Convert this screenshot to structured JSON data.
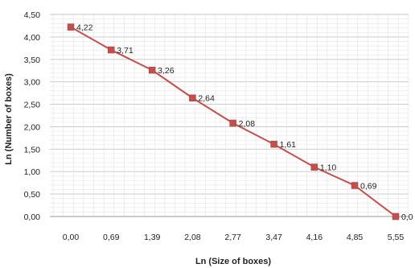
{
  "chart_data": {
    "type": "line",
    "x_tick_labels": [
      "0,00",
      "0,69",
      "1,39",
      "2,08",
      "2,77",
      "3,47",
      "4,16",
      "4,85",
      "5,55"
    ],
    "y_tick_labels": [
      "0,00",
      "0,50",
      "1,00",
      "1,50",
      "2,00",
      "2,50",
      "3,00",
      "3,50",
      "4,00",
      "4,50"
    ],
    "x": [
      0.0,
      0.69,
      1.39,
      2.08,
      2.77,
      3.47,
      4.16,
      4.85,
      5.55
    ],
    "series": [
      {
        "values": [
          4.22,
          3.71,
          3.26,
          2.64,
          2.08,
          1.61,
          1.1,
          0.69,
          0.0
        ],
        "labels": [
          "4,22",
          "3,71",
          "3,26",
          "2,64",
          "2,08",
          "1,61",
          "1,10",
          "0,69",
          "0,0"
        ]
      }
    ],
    "xlabel": "Ln (Size of boxes)",
    "ylabel": "Ln (Number of boxes)",
    "ylim": [
      0,
      4.5
    ],
    "grid": true,
    "colors": {
      "line": "#c0504d",
      "marker": "#c0504d",
      "grid": "#cfcfcf"
    }
  }
}
